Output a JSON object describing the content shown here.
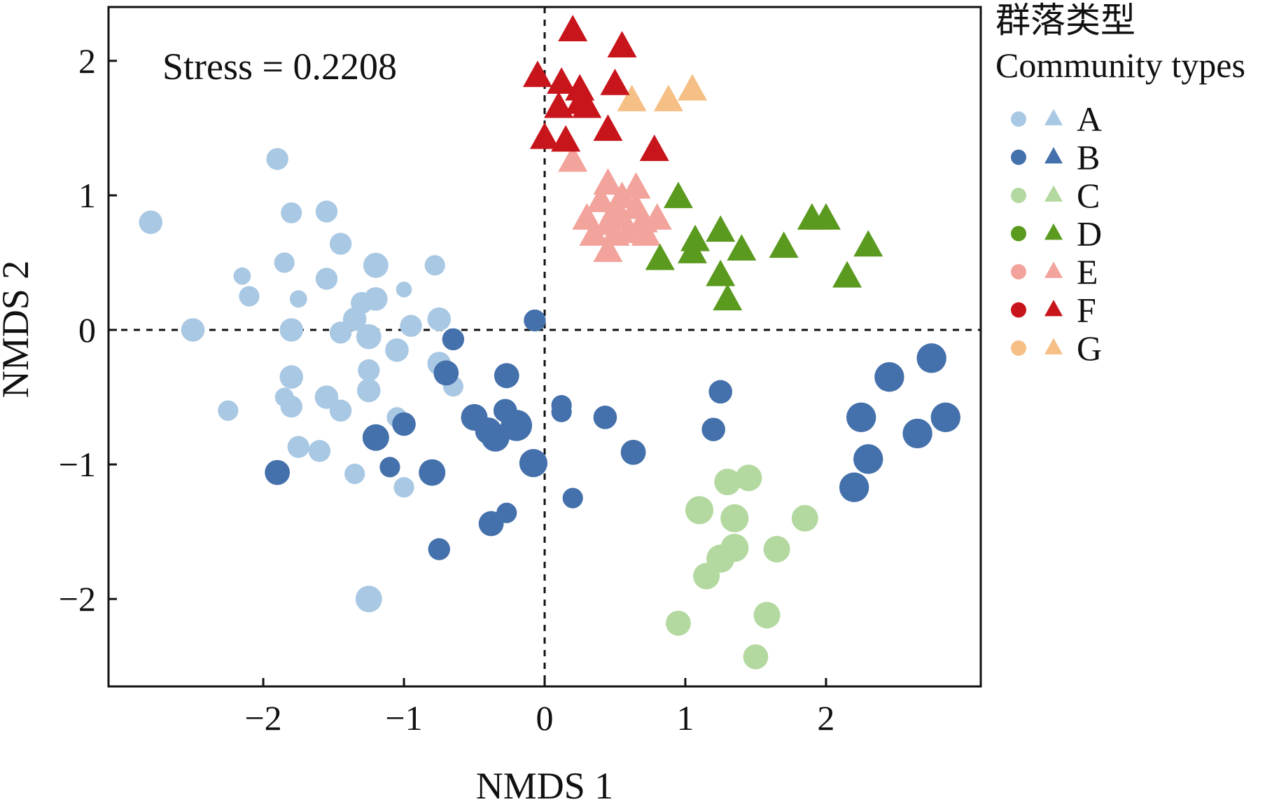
{
  "chart_data": {
    "type": "scatter",
    "xlabel": "NMDS 1",
    "ylabel": "NMDS 2",
    "xlim": [
      -3.1,
      3.1
    ],
    "ylim": [
      -2.65,
      2.4
    ],
    "x_ticks": [
      -2,
      -1,
      0,
      1,
      2
    ],
    "x_tick_labels": [
      "−2",
      "−1",
      "0",
      "1",
      "2"
    ],
    "y_ticks": [
      -2,
      -1,
      0,
      1,
      2
    ],
    "y_tick_labels": [
      "−2",
      "−1",
      "0",
      "1",
      "2"
    ],
    "annotation": "Stress = 0.2208",
    "reference_lines": {
      "x": 0,
      "y": 0,
      "style": "dashed"
    },
    "grid": false,
    "legend": {
      "title_lines": [
        "群落类型",
        "Community types"
      ],
      "position": "right",
      "marker_shapes": [
        "circle",
        "triangle"
      ]
    },
    "series": [
      {
        "name": "A",
        "color": "#a9c8e3",
        "marker": "circle",
        "points": [
          [
            -2.8,
            0.8,
            0.4
          ],
          [
            -2.5,
            0.0,
            0.4
          ],
          [
            -2.25,
            -0.6,
            0.3
          ],
          [
            -2.1,
            0.25,
            0.3
          ],
          [
            -2.15,
            0.4,
            0.2
          ],
          [
            -1.9,
            1.27,
            0.35
          ],
          [
            -1.8,
            0.87,
            0.32
          ],
          [
            -1.85,
            0.5,
            0.3
          ],
          [
            -1.8,
            -0.35,
            0.4
          ],
          [
            -1.8,
            -0.57,
            0.35
          ],
          [
            -1.85,
            -0.5,
            0.25
          ],
          [
            -1.8,
            0.0,
            0.4
          ],
          [
            -1.75,
            0.23,
            0.2
          ],
          [
            -1.75,
            -0.87,
            0.35
          ],
          [
            -1.6,
            -0.9,
            0.35
          ],
          [
            -1.55,
            0.88,
            0.35
          ],
          [
            -1.55,
            0.38,
            0.35
          ],
          [
            -1.55,
            -0.5,
            0.4
          ],
          [
            -1.45,
            0.64,
            0.35
          ],
          [
            -1.45,
            -0.02,
            0.35
          ],
          [
            -1.45,
            -0.6,
            0.35
          ],
          [
            -1.35,
            0.08,
            0.4
          ],
          [
            -1.35,
            -1.07,
            0.3
          ],
          [
            -1.3,
            0.2,
            0.35
          ],
          [
            -1.25,
            -0.05,
            0.45
          ],
          [
            -1.25,
            -0.3,
            0.35
          ],
          [
            -1.25,
            -0.45,
            0.4
          ],
          [
            -1.2,
            0.23,
            0.4
          ],
          [
            -1.2,
            0.48,
            0.45
          ],
          [
            -1.05,
            -0.65,
            0.3
          ],
          [
            -1.05,
            -0.15,
            0.4
          ],
          [
            -1.0,
            -1.17,
            0.3
          ],
          [
            -1.0,
            0.3,
            0.15
          ],
          [
            -0.95,
            0.03,
            0.35
          ],
          [
            -0.78,
            0.48,
            0.3
          ],
          [
            -0.75,
            0.08,
            0.4
          ],
          [
            -0.75,
            -0.25,
            0.4
          ],
          [
            -0.65,
            -0.42,
            0.3
          ],
          [
            -1.25,
            -2.0,
            0.5
          ]
        ]
      },
      {
        "name": "B",
        "color": "#4470ab",
        "marker": "circle",
        "points": [
          [
            -1.9,
            -1.06,
            0.45
          ],
          [
            -1.2,
            -0.8,
            0.5
          ],
          [
            -1.1,
            -1.02,
            0.3
          ],
          [
            -1.0,
            -0.7,
            0.4
          ],
          [
            -0.8,
            -1.06,
            0.5
          ],
          [
            -0.7,
            -0.32,
            0.45
          ],
          [
            -0.65,
            -0.07,
            0.35
          ],
          [
            -0.75,
            -1.63,
            0.35
          ],
          [
            -0.5,
            -0.65,
            0.5
          ],
          [
            -0.4,
            -0.75,
            0.5
          ],
          [
            -0.38,
            -1.44,
            0.45
          ],
          [
            -0.35,
            -0.8,
            0.55
          ],
          [
            -0.28,
            -0.6,
            0.4
          ],
          [
            -0.27,
            -1.36,
            0.3
          ],
          [
            -0.27,
            -0.34,
            0.45
          ],
          [
            -0.2,
            -0.71,
            0.65
          ],
          [
            -0.08,
            -0.99,
            0.55
          ],
          [
            -0.07,
            0.07,
            0.35
          ],
          [
            0.12,
            -0.56,
            0.3
          ],
          [
            0.12,
            -0.61,
            0.3
          ],
          [
            0.2,
            -1.25,
            0.3
          ],
          [
            0.43,
            -0.65,
            0.4
          ],
          [
            0.63,
            -0.91,
            0.45
          ],
          [
            1.2,
            -0.74,
            0.4
          ],
          [
            1.25,
            -0.46,
            0.4
          ],
          [
            2.25,
            -0.65,
            0.6
          ],
          [
            2.3,
            -0.96,
            0.6
          ],
          [
            2.2,
            -1.17,
            0.6
          ],
          [
            2.45,
            -0.35,
            0.6
          ],
          [
            2.65,
            -0.77,
            0.6
          ],
          [
            2.75,
            -0.21,
            0.6
          ],
          [
            2.85,
            -0.65,
            0.6
          ]
        ]
      },
      {
        "name": "C",
        "color": "#b4d9a0",
        "marker": "circle",
        "points": [
          [
            0.95,
            -2.18,
            0.45
          ],
          [
            1.1,
            -1.34,
            0.55
          ],
          [
            1.15,
            -1.83,
            0.5
          ],
          [
            1.25,
            -1.7,
            0.55
          ],
          [
            1.3,
            -1.13,
            0.5
          ],
          [
            1.35,
            -1.4,
            0.55
          ],
          [
            1.35,
            -1.62,
            0.55
          ],
          [
            1.45,
            -1.1,
            0.5
          ],
          [
            1.5,
            -2.43,
            0.45
          ],
          [
            1.58,
            -2.12,
            0.5
          ],
          [
            1.65,
            -1.63,
            0.5
          ],
          [
            1.85,
            -1.4,
            0.5
          ]
        ]
      },
      {
        "name": "D",
        "color": "#5a9a1e",
        "marker": "triangle",
        "points": [
          [
            0.82,
            0.52
          ],
          [
            0.95,
            0.98
          ],
          [
            1.05,
            0.57
          ],
          [
            1.07,
            0.66
          ],
          [
            1.25,
            0.73
          ],
          [
            1.25,
            0.4
          ],
          [
            1.3,
            0.22
          ],
          [
            1.4,
            0.59
          ],
          [
            1.7,
            0.61
          ],
          [
            1.9,
            0.82
          ],
          [
            2.0,
            0.82
          ],
          [
            2.15,
            0.39
          ],
          [
            2.3,
            0.62
          ]
        ]
      },
      {
        "name": "E",
        "color": "#f2a39b",
        "marker": "triangle",
        "points": [
          [
            0.2,
            1.25
          ],
          [
            0.3,
            0.82
          ],
          [
            0.35,
            0.7
          ],
          [
            0.4,
            0.95
          ],
          [
            0.45,
            1.08
          ],
          [
            0.45,
            0.78
          ],
          [
            0.45,
            0.58
          ],
          [
            0.5,
            0.88
          ],
          [
            0.5,
            0.7
          ],
          [
            0.55,
            0.98
          ],
          [
            0.55,
            0.82
          ],
          [
            0.6,
            0.72
          ],
          [
            0.65,
            1.05
          ],
          [
            0.65,
            0.9
          ],
          [
            0.7,
            0.8
          ],
          [
            0.72,
            0.7
          ],
          [
            0.8,
            0.82
          ]
        ]
      },
      {
        "name": "F",
        "color": "#c8141b",
        "marker": "triangle",
        "points": [
          [
            -0.05,
            1.88
          ],
          [
            0.0,
            1.42
          ],
          [
            0.1,
            1.65
          ],
          [
            0.15,
            1.4
          ],
          [
            0.12,
            1.83
          ],
          [
            0.2,
            2.22
          ],
          [
            0.25,
            1.78
          ],
          [
            0.25,
            1.68
          ],
          [
            0.3,
            1.65
          ],
          [
            0.45,
            1.48
          ],
          [
            0.5,
            1.82
          ],
          [
            0.55,
            2.1
          ],
          [
            0.78,
            1.33
          ]
        ]
      },
      {
        "name": "G",
        "color": "#f6bf85",
        "marker": "triangle",
        "points": [
          [
            0.62,
            1.7
          ],
          [
            0.88,
            1.7
          ],
          [
            1.05,
            1.78
          ]
        ]
      }
    ]
  }
}
